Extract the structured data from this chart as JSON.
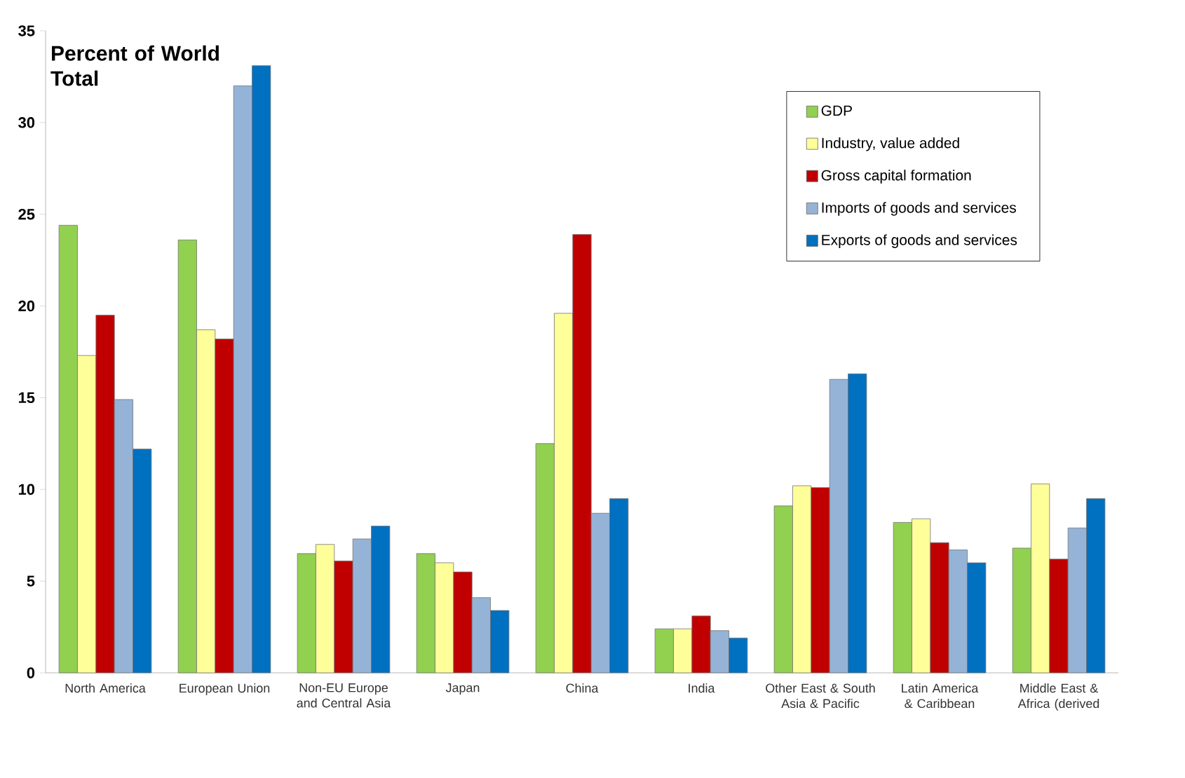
{
  "chart_data": {
    "type": "bar",
    "title": "Percent of World Total",
    "categories": [
      "North America",
      "European Union",
      "Non-EU Europe and Central Asia",
      "Japan",
      "China",
      "India",
      "Other East & South Asia & Pacific",
      "Latin America & Caribbean",
      "Middle East & Africa (derived"
    ],
    "series": [
      {
        "name": "GDP",
        "color": "#92d050",
        "values": [
          24.4,
          23.6,
          6.5,
          6.5,
          12.5,
          2.4,
          9.1,
          8.2,
          6.8
        ]
      },
      {
        "name": "Industry, value added",
        "color": "#ffff99",
        "values": [
          17.3,
          18.7,
          7.0,
          6.0,
          19.6,
          2.4,
          10.2,
          8.4,
          10.3
        ]
      },
      {
        "name": "Gross capital formation",
        "color": "#c00000",
        "values": [
          19.5,
          18.2,
          6.1,
          5.5,
          23.9,
          3.1,
          10.1,
          7.1,
          6.2
        ]
      },
      {
        "name": "Imports of goods and services",
        "color": "#95b3d7",
        "values": [
          14.9,
          32.0,
          7.3,
          4.1,
          8.7,
          2.3,
          16.0,
          6.7,
          7.9
        ]
      },
      {
        "name": "Exports of goods and services",
        "color": "#0070c0",
        "values": [
          12.2,
          33.1,
          8.0,
          3.4,
          9.5,
          1.9,
          16.3,
          6.0,
          9.5
        ]
      }
    ],
    "ylim": [
      0,
      35
    ],
    "yticks": [
      0,
      5,
      10,
      15,
      20,
      25,
      30,
      35
    ],
    "grid": false,
    "legend": "top right"
  }
}
